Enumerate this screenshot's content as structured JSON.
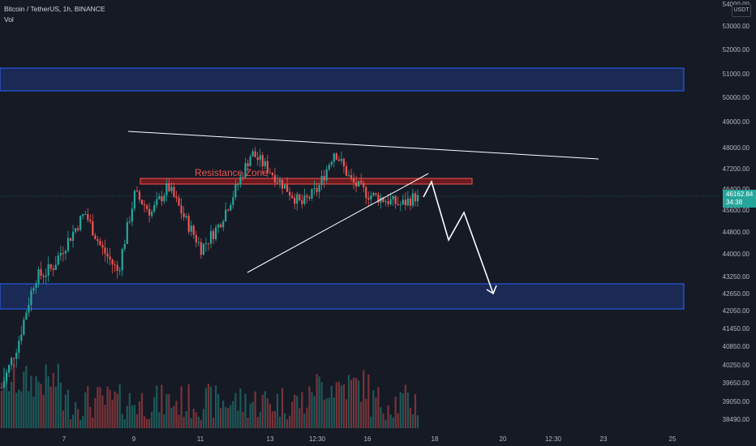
{
  "header": {
    "symbol_line": "Bitcoin / TetherUS, 1h, BINANCE",
    "volume_label": "Vol"
  },
  "currency_button": "USDT",
  "last_price": {
    "value": "46162.84",
    "countdown": "34:38",
    "color": "#26a69a"
  },
  "colors": {
    "background": "#161a25",
    "up": "#26a69a",
    "down": "#ef5350",
    "support_zone": "#1e3d8f",
    "resistance_zone": "#b71c1c",
    "trendline": "#ffffff"
  },
  "chart_data": {
    "type": "candlestick",
    "x_tick_labels": [
      "7",
      "9",
      "11",
      "13",
      "12:30",
      "16",
      "18",
      "20",
      "12:30",
      "23",
      "25"
    ],
    "y_tick_labels": [
      "54000.00",
      "53000.00",
      "52000.00",
      "51000.00",
      "50000.00",
      "49000.00",
      "48000.00",
      "47200.00",
      "46400.00",
      "45600.00",
      "44800.00",
      "44000.00",
      "43250.00",
      "42650.00",
      "42050.00",
      "41450.00",
      "40850.00",
      "40250.00",
      "39650.00",
      "39050.00",
      "38490.00"
    ],
    "approx_price_path": [
      39500,
      41000,
      43200,
      43500,
      44500,
      45500,
      44200,
      43400,
      46200,
      45500,
      46500,
      45300,
      44200,
      45000,
      46300,
      47800,
      47200,
      46500,
      45800,
      46400,
      47900,
      46700,
      46200,
      46000,
      45800,
      46162.84
    ],
    "last_price": 46162.84,
    "annotations": [
      {
        "type": "zone",
        "label": "",
        "from": 50300,
        "to": 51200
      },
      {
        "type": "zone",
        "label": "Resistance Zone",
        "from": 46700,
        "to": 46950
      },
      {
        "type": "zone",
        "label": "",
        "from": 42150,
        "to": 43050
      },
      {
        "type": "trendline",
        "label": "",
        "from": 48700,
        "to": 47700
      },
      {
        "type": "trendline",
        "label": "",
        "from": 43600,
        "to": 47100
      },
      {
        "type": "projection-arrow",
        "label": "",
        "from": 46100,
        "to": 42500
      }
    ],
    "legend": [
      "Bitcoin / TetherUS, 1h, BINANCE",
      "Vol"
    ],
    "grid": false
  }
}
